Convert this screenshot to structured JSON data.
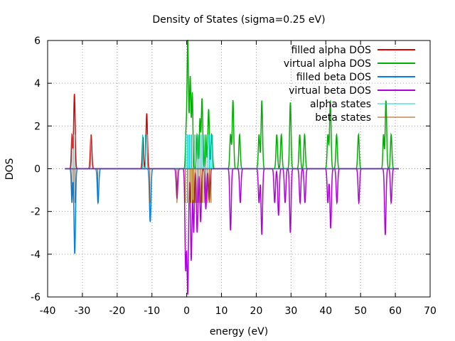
{
  "chart_data": {
    "type": "line",
    "title": "Density of States (sigma=0.25 eV)",
    "xlabel": "energy (eV)",
    "ylabel": "DOS",
    "xlim": [
      -40,
      70
    ],
    "ylim": [
      -6,
      6
    ],
    "xticks": [
      -40,
      -30,
      -20,
      -10,
      0,
      10,
      20,
      30,
      40,
      50,
      60,
      70
    ],
    "yticks": [
      -6,
      -4,
      -2,
      0,
      2,
      4,
      6
    ],
    "grid": true,
    "legend_position": "top-right",
    "series": [
      {
        "name": "filled alpha DOS",
        "color": "#e00000",
        "style": "line",
        "peaks": [
          [
            -33.0,
            1.6,
            0.25
          ],
          [
            -32.3,
            3.5,
            0.3
          ],
          [
            -27.5,
            1.6,
            0.3
          ],
          [
            -12.6,
            1.5,
            0.25
          ],
          [
            -11.5,
            2.6,
            0.3
          ]
        ]
      },
      {
        "name": "virtual alpha DOS",
        "color": "#00b000",
        "style": "line",
        "peaks": [
          [
            -0.2,
            1.6,
            0.25
          ],
          [
            0.3,
            6.0,
            0.3
          ],
          [
            1.0,
            4.3,
            0.3
          ],
          [
            1.6,
            3.5,
            0.25
          ],
          [
            3.0,
            1.6,
            0.3
          ],
          [
            3.8,
            2.3,
            0.25
          ],
          [
            4.4,
            3.3,
            0.3
          ],
          [
            5.5,
            1.6,
            0.25
          ],
          [
            6.3,
            2.8,
            0.3
          ],
          [
            7.2,
            1.6,
            0.3
          ],
          [
            12.6,
            1.6,
            0.3
          ],
          [
            13.3,
            3.2,
            0.3
          ],
          [
            15.2,
            1.6,
            0.3
          ],
          [
            20.8,
            1.6,
            0.3
          ],
          [
            21.6,
            3.2,
            0.3
          ],
          [
            25.9,
            1.6,
            0.3
          ],
          [
            27.2,
            1.6,
            0.3
          ],
          [
            29.8,
            3.1,
            0.3
          ],
          [
            32.5,
            1.6,
            0.3
          ],
          [
            33.9,
            1.6,
            0.3
          ],
          [
            40.6,
            1.6,
            0.3
          ],
          [
            41.3,
            3.2,
            0.3
          ],
          [
            43.1,
            1.6,
            0.3
          ],
          [
            49.4,
            1.6,
            0.3
          ],
          [
            56.6,
            1.6,
            0.25
          ],
          [
            57.3,
            3.2,
            0.3
          ],
          [
            58.8,
            1.6,
            0.3
          ]
        ]
      },
      {
        "name": "filled beta DOS",
        "color": "#0080e0",
        "style": "line",
        "peaks": [
          [
            -33.0,
            -1.6,
            0.25
          ],
          [
            -32.2,
            -4.0,
            0.3
          ],
          [
            -25.5,
            -1.6,
            0.3
          ],
          [
            -10.5,
            -2.5,
            0.3
          ]
        ]
      },
      {
        "name": "virtual beta DOS",
        "color": "#b000e0",
        "style": "line",
        "peaks": [
          [
            -2.8,
            -1.4,
            0.3
          ],
          [
            -0.3,
            -4.7,
            0.3
          ],
          [
            0.3,
            -5.8,
            0.3
          ],
          [
            1.3,
            -4.3,
            0.3
          ],
          [
            2.0,
            -3.0,
            0.25
          ],
          [
            3.0,
            -3.0,
            0.3
          ],
          [
            4.0,
            -2.5,
            0.3
          ],
          [
            5.5,
            -1.9,
            0.3
          ],
          [
            6.5,
            -1.5,
            0.3
          ],
          [
            12.6,
            -2.9,
            0.3
          ],
          [
            15.4,
            -1.6,
            0.3
          ],
          [
            20.8,
            -1.6,
            0.3
          ],
          [
            21.6,
            -3.1,
            0.3
          ],
          [
            25.3,
            -1.6,
            0.3
          ],
          [
            26.4,
            -2.2,
            0.3
          ],
          [
            28.3,
            -1.6,
            0.3
          ],
          [
            29.8,
            -3.0,
            0.3
          ],
          [
            32.6,
            -1.6,
            0.3
          ],
          [
            34.0,
            -1.6,
            0.3
          ],
          [
            40.6,
            -1.6,
            0.3
          ],
          [
            41.4,
            -2.8,
            0.3
          ],
          [
            43.2,
            -1.6,
            0.3
          ],
          [
            49.5,
            -1.6,
            0.3
          ],
          [
            57.1,
            -3.1,
            0.3
          ],
          [
            58.8,
            -1.6,
            0.3
          ]
        ]
      },
      {
        "name": "alpha states",
        "color": "#00d0d0",
        "style": "impulse",
        "x": [
          -33.0,
          -32.5,
          -32.1,
          -27.6,
          -12.7,
          -11.9,
          -11.3,
          -0.3,
          0.1,
          0.4,
          0.8,
          1.1,
          1.4,
          1.8,
          2.2,
          2.6,
          3.0,
          3.4,
          3.8,
          4.2,
          4.6,
          5.0,
          5.5,
          6.0,
          6.5,
          7.0,
          7.4
        ],
        "y": [
          1.6,
          1.6,
          1.6,
          1.6,
          1.6,
          1.6,
          1.6,
          1.6,
          1.6,
          1.6,
          1.6,
          1.6,
          1.6,
          1.6,
          1.6,
          1.6,
          1.6,
          1.6,
          1.6,
          1.6,
          1.6,
          1.6,
          1.6,
          1.6,
          1.6,
          1.6,
          1.6
        ]
      },
      {
        "name": "beta states",
        "color": "#a05000",
        "style": "impulse",
        "x": [
          -33.0,
          -32.5,
          -32.1,
          -25.6,
          -10.6,
          -2.8,
          -0.4,
          0.2,
          0.7,
          1.2,
          1.6,
          2.0,
          2.5,
          3.0,
          3.5,
          4.0,
          4.5,
          5.0,
          5.5,
          6.0,
          6.5,
          7.0
        ],
        "y": [
          -1.6,
          -1.6,
          -1.6,
          -1.6,
          -1.6,
          -1.6,
          -1.6,
          -1.6,
          -1.6,
          -1.6,
          -1.6,
          -1.6,
          -1.6,
          -1.6,
          -1.6,
          -1.6,
          -1.6,
          -1.6,
          -1.6,
          -1.6,
          -1.6,
          -1.6
        ]
      }
    ]
  }
}
